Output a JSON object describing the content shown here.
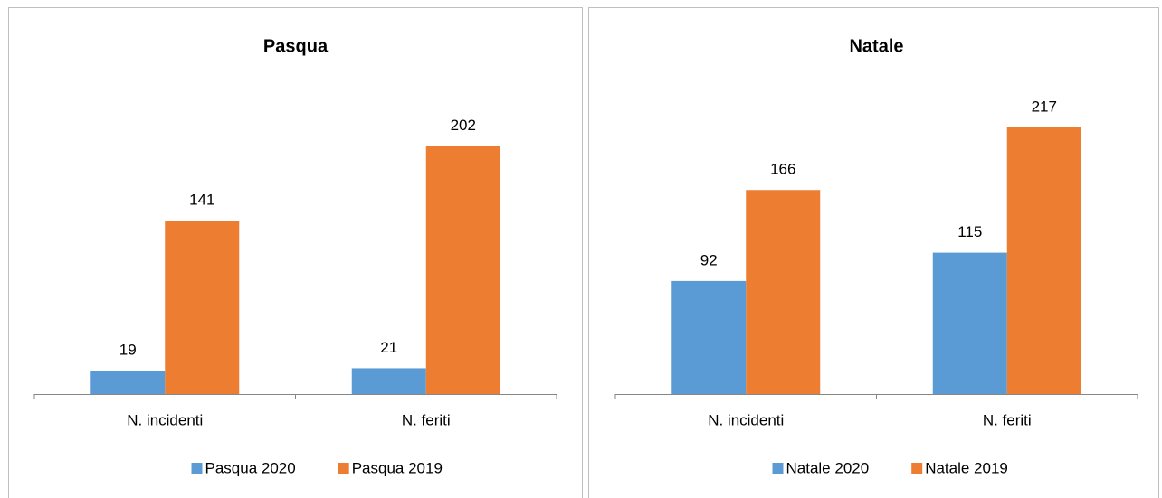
{
  "chart_data": [
    {
      "type": "bar",
      "title": "Pasqua",
      "categories": [
        "N. incidenti",
        "N. feriti"
      ],
      "series": [
        {
          "name": "Pasqua 2020",
          "color": "#5b9bd5",
          "values": [
            19,
            21
          ]
        },
        {
          "name": "Pasqua 2019",
          "color": "#ed7d31",
          "values": [
            141,
            202
          ]
        }
      ],
      "ylim": [
        0,
        250
      ]
    },
    {
      "type": "bar",
      "title": "Natale",
      "categories": [
        "N. incidenti",
        "N. feriti"
      ],
      "series": [
        {
          "name": "Natale 2020",
          "color": "#5b9bd5",
          "values": [
            92,
            115
          ]
        },
        {
          "name": "Natale 2019",
          "color": "#ed7d31",
          "values": [
            166,
            217
          ]
        }
      ],
      "ylim": [
        0,
        250
      ]
    }
  ]
}
